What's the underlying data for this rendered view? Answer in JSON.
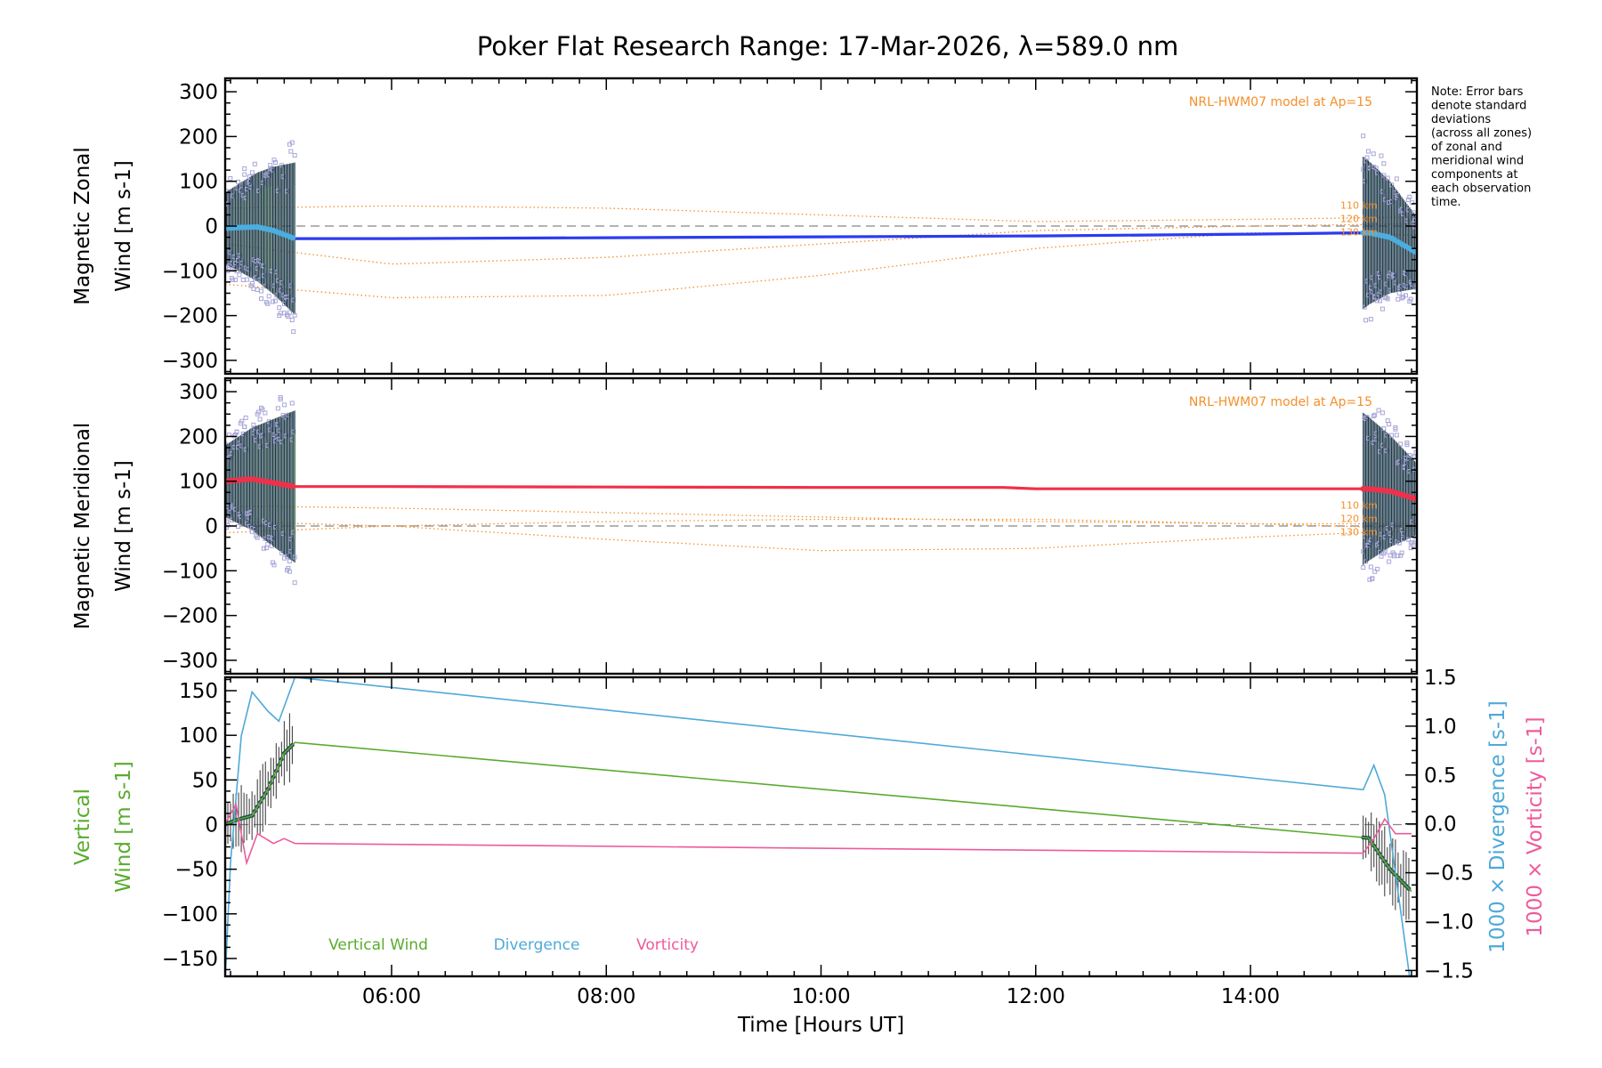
{
  "title": "Poker Flat Research Range: 17-Mar-2026, λ=589.0 nm",
  "note": [
    "Note: Error bars",
    "denote standard",
    "deviations",
    "(across all zones)",
    "of zonal and",
    "meridional wind",
    "components at",
    "each observation",
    "time."
  ],
  "colors": {
    "zonal": "#2b3bf0",
    "meridional": "#f0304a",
    "model": "#f48f2a",
    "scatter": "#a8a6d8",
    "errorbar": "#1e3a4a",
    "vertical": "#5aab2e",
    "divergence": "#4eaad8",
    "vorticity": "#ee5a9a",
    "zero": "#888888",
    "zonal_early": "#4aaee0"
  },
  "chart_data": [
    {
      "id": "zonal",
      "type": "line",
      "ylabel": [
        "Magnetic Zonal",
        "Wind [m s-1]"
      ],
      "ylim": [
        -330,
        330
      ],
      "yticks": [
        -300,
        -200,
        -100,
        0,
        100,
        200,
        300
      ],
      "xlim": [
        4.45,
        15.55
      ],
      "model_label": "NRL-HWM07 model at Ap=15",
      "model_alt_labels": [
        "110 km",
        "120 km",
        "130 km"
      ],
      "series": [
        {
          "name": "Zonal wind",
          "x": [
            4.45,
            4.6,
            4.75,
            4.9,
            5.1,
            6.0,
            8.0,
            10.0,
            12.0,
            14.0,
            15.1,
            15.3,
            15.55
          ],
          "y": [
            -5,
            -3,
            -2,
            -10,
            -28,
            -28,
            -26,
            -24,
            -22,
            -18,
            -15,
            -25,
            -60
          ]
        }
      ],
      "model_series": [
        {
          "name": "110 km",
          "x": [
            4.45,
            6,
            8,
            10,
            12,
            14,
            15.55
          ],
          "y": [
            40,
            45,
            40,
            25,
            10,
            15,
            20
          ]
        },
        {
          "name": "120 km",
          "x": [
            4.45,
            6,
            8,
            10,
            12,
            14,
            15.55
          ],
          "y": [
            -40,
            -85,
            -70,
            -40,
            -10,
            0,
            5
          ]
        },
        {
          "name": "130 km",
          "x": [
            4.45,
            6,
            8,
            10,
            12,
            14,
            15.55
          ],
          "y": [
            -130,
            -160,
            -155,
            -110,
            -50,
            -15,
            -20
          ]
        }
      ],
      "errorbar_half_width": [
        80,
        170
      ]
    },
    {
      "id": "meridional",
      "type": "line",
      "ylabel": [
        "Magnetic Meridional",
        "Wind [m s-1]"
      ],
      "ylim": [
        -330,
        330
      ],
      "yticks": [
        -300,
        -200,
        -100,
        0,
        100,
        200,
        300
      ],
      "xlim": [
        4.45,
        15.55
      ],
      "model_label": "NRL-HWM07 model at Ap=15",
      "model_alt_labels": [
        "110 km",
        "120 km",
        "130 km"
      ],
      "series": [
        {
          "name": "Meridional wind",
          "x": [
            4.45,
            4.7,
            5.1,
            6.0,
            8.0,
            10.0,
            11.7,
            12.0,
            14.0,
            15.1,
            15.3,
            15.55
          ],
          "y": [
            100,
            105,
            88,
            88,
            87,
            86,
            86,
            83,
            83,
            83,
            78,
            60
          ]
        }
      ],
      "model_series": [
        {
          "name": "110 km",
          "x": [
            4.45,
            6,
            8,
            10,
            12,
            14,
            15.55
          ],
          "y": [
            45,
            40,
            30,
            20,
            10,
            5,
            5
          ]
        },
        {
          "name": "120 km",
          "x": [
            4.45,
            6,
            8,
            10,
            12,
            14,
            15.55
          ],
          "y": [
            -15,
            0,
            10,
            15,
            15,
            5,
            -5
          ]
        },
        {
          "name": "130 km",
          "x": [
            4.45,
            6,
            8,
            10,
            12,
            14,
            15.55
          ],
          "y": [
            10,
            0,
            -30,
            -55,
            -50,
            -25,
            -10
          ]
        }
      ],
      "errorbar_half_width": [
        80,
        170
      ]
    },
    {
      "id": "vertical",
      "type": "line",
      "ylabel": [
        "Vertical",
        "Wind [m s-1]"
      ],
      "ylim": [
        -170,
        165
      ],
      "yticks": [
        -150,
        -100,
        -50,
        0,
        50,
        100,
        150
      ],
      "xlim": [
        4.45,
        15.55
      ],
      "xticks": [
        6,
        8,
        10,
        12,
        14
      ],
      "xticklabels": [
        "06:00",
        "08:00",
        "10:00",
        "12:00",
        "14:00"
      ],
      "xlabel": "Time [Hours UT]",
      "y2label": [
        "1000 × Divergence [s-1]",
        "1000 × Vorticity [s-1]"
      ],
      "y2lim": [
        -1.56,
        1.5
      ],
      "y2ticks": [
        -1.5,
        -1.0,
        -0.5,
        0.0,
        0.5,
        1.0,
        1.5
      ],
      "y2ticklabels": [
        "−1.5",
        "−1.0",
        "−0.5",
        "0.0",
        "0.5",
        "1.0",
        "1.5"
      ],
      "legend": [
        "Vertical Wind",
        "Divergence",
        "Vorticity"
      ],
      "series": [
        {
          "name": "Vertical Wind",
          "axis": "left",
          "x": [
            4.45,
            4.55,
            4.7,
            4.85,
            5.0,
            5.1,
            15.1,
            15.3,
            15.5
          ],
          "y": [
            0,
            5,
            10,
            40,
            80,
            92,
            -15,
            -50,
            -75
          ]
        },
        {
          "name": "Divergence",
          "axis": "right",
          "x": [
            4.45,
            4.5,
            4.6,
            4.7,
            4.85,
            4.95,
            5.1,
            15.05,
            15.15,
            15.25,
            15.35,
            15.4,
            15.48
          ],
          "y": [
            -1.6,
            -0.4,
            0.9,
            1.35,
            1.15,
            1.05,
            1.5,
            0.35,
            0.6,
            0.3,
            -0.5,
            -0.9,
            -1.55
          ]
        },
        {
          "name": "Vorticity",
          "axis": "right",
          "x": [
            4.45,
            4.55,
            4.65,
            4.75,
            4.9,
            5.0,
            5.1,
            15.05,
            15.15,
            15.25,
            15.35,
            15.5
          ],
          "y": [
            0.0,
            0.2,
            -0.4,
            -0.1,
            -0.2,
            -0.15,
            -0.2,
            -0.3,
            -0.15,
            0.05,
            -0.1,
            -0.1
          ]
        }
      ]
    }
  ]
}
